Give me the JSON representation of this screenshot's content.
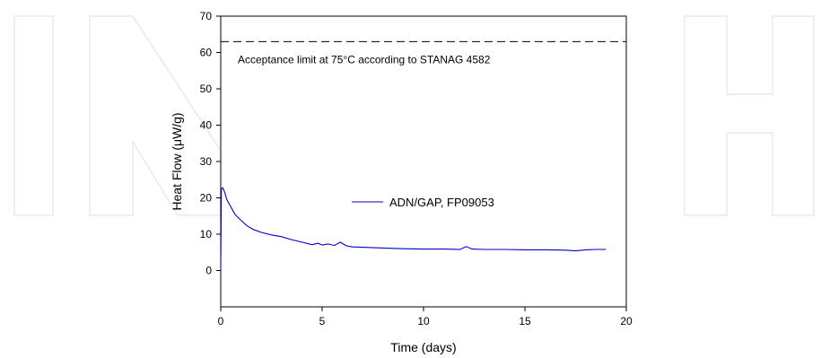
{
  "chart_data": {
    "type": "line",
    "title": "",
    "xlabel": "Time (days)",
    "ylabel": "Heat Flow (μW/g)",
    "xlim": [
      0,
      20
    ],
    "ylim": [
      -10,
      70
    ],
    "x_ticks": [
      0,
      5,
      10,
      15,
      20
    ],
    "y_ticks": [
      0,
      10,
      20,
      30,
      40,
      50,
      60,
      70
    ],
    "grid": false,
    "legend": "center-right",
    "series": [
      {
        "name": "ADN/GAP, FP09053",
        "color": "#0000c8",
        "x": [
          0,
          0.03,
          0.1,
          0.2,
          0.3,
          0.5,
          0.7,
          1.0,
          1.3,
          1.6,
          2.0,
          2.5,
          3.0,
          3.5,
          4.0,
          4.5,
          4.8,
          5.0,
          5.3,
          5.6,
          5.9,
          6.2,
          6.5,
          7.0,
          8.0,
          9.0,
          10.0,
          11.0,
          11.8,
          12.1,
          12.4,
          13.0,
          14.0,
          15.0,
          16.0,
          17.0,
          17.5,
          18.0,
          18.5,
          19.0
        ],
        "y": [
          0,
          22.5,
          22.8,
          21.5,
          19.5,
          17.5,
          15.5,
          13.8,
          12.3,
          11.3,
          10.5,
          9.8,
          9.3,
          8.5,
          7.8,
          7.1,
          7.5,
          7.0,
          7.3,
          6.9,
          7.8,
          6.8,
          6.5,
          6.4,
          6.2,
          6.0,
          5.9,
          5.9,
          5.8,
          6.6,
          5.9,
          5.8,
          5.8,
          5.7,
          5.7,
          5.6,
          5.4,
          5.7,
          5.8,
          5.8
        ]
      }
    ],
    "reference_line": {
      "y": 63,
      "style": "dashed",
      "label": "Acceptance limit at 75°C according to STANAG 4582"
    }
  }
}
